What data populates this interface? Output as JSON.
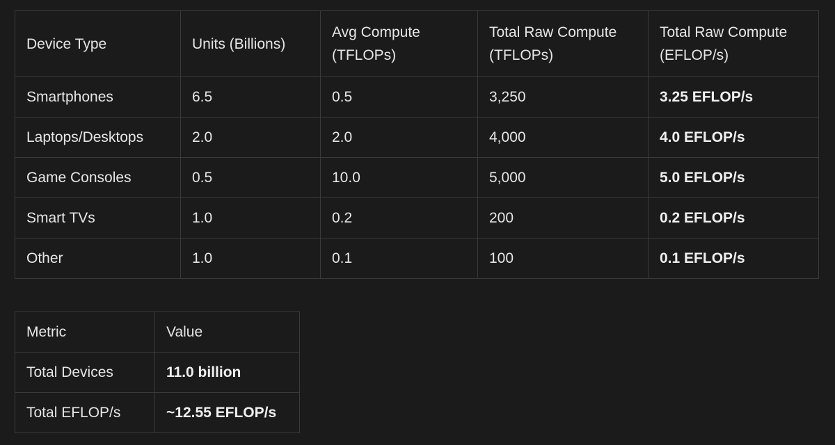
{
  "device_table": {
    "headers": [
      "Device Type",
      "Units (Billions)",
      "Avg Compute (TFLOPs)",
      "Total Raw Compute (TFLOPs)",
      "Total Raw Compute (EFLOP/s)"
    ],
    "rows": [
      [
        "Smartphones",
        "6.5",
        "0.5",
        "3,250",
        "3.25 EFLOP/s"
      ],
      [
        "Laptops/Desktops",
        "2.0",
        "2.0",
        "4,000",
        "4.0 EFLOP/s"
      ],
      [
        "Game Consoles",
        "0.5",
        "10.0",
        "5,000",
        "5.0 EFLOP/s"
      ],
      [
        "Smart TVs",
        "1.0",
        "0.2",
        "200",
        "0.2 EFLOP/s"
      ],
      [
        "Other",
        "1.0",
        "0.1",
        "100",
        "0.1 EFLOP/s"
      ]
    ]
  },
  "summary_table": {
    "headers": [
      "Metric",
      "Value"
    ],
    "rows": [
      [
        "Total Devices",
        "11.0 billion"
      ],
      [
        "Total EFLOP/s",
        "~12.55 EFLOP/s"
      ]
    ]
  }
}
